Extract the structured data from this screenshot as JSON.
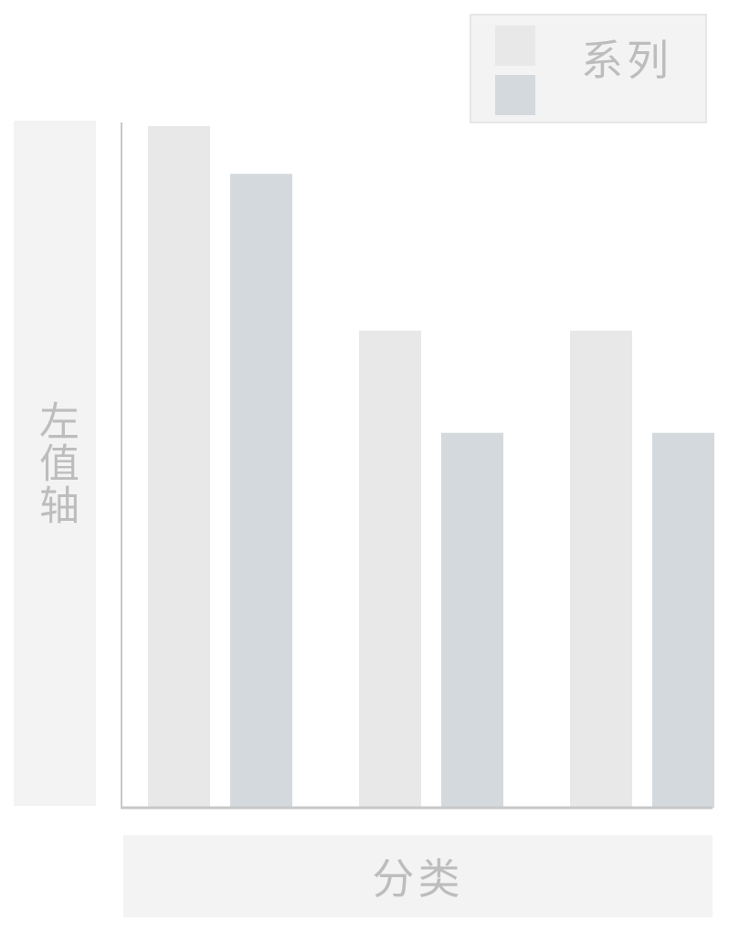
{
  "chart_data": {
    "type": "bar",
    "title": "",
    "xlabel": "分类",
    "ylabel": "左值轴",
    "legend_title": "系列",
    "legend_position": "top-right",
    "grid": false,
    "categories": [
      "",
      "",
      ""
    ],
    "ylim": [
      0,
      100
    ],
    "series": [
      {
        "color": "#e8e8e8",
        "values": [
          100,
          70,
          70
        ]
      },
      {
        "color": "#d4d9dd",
        "values": [
          93,
          55,
          55
        ]
      }
    ]
  }
}
